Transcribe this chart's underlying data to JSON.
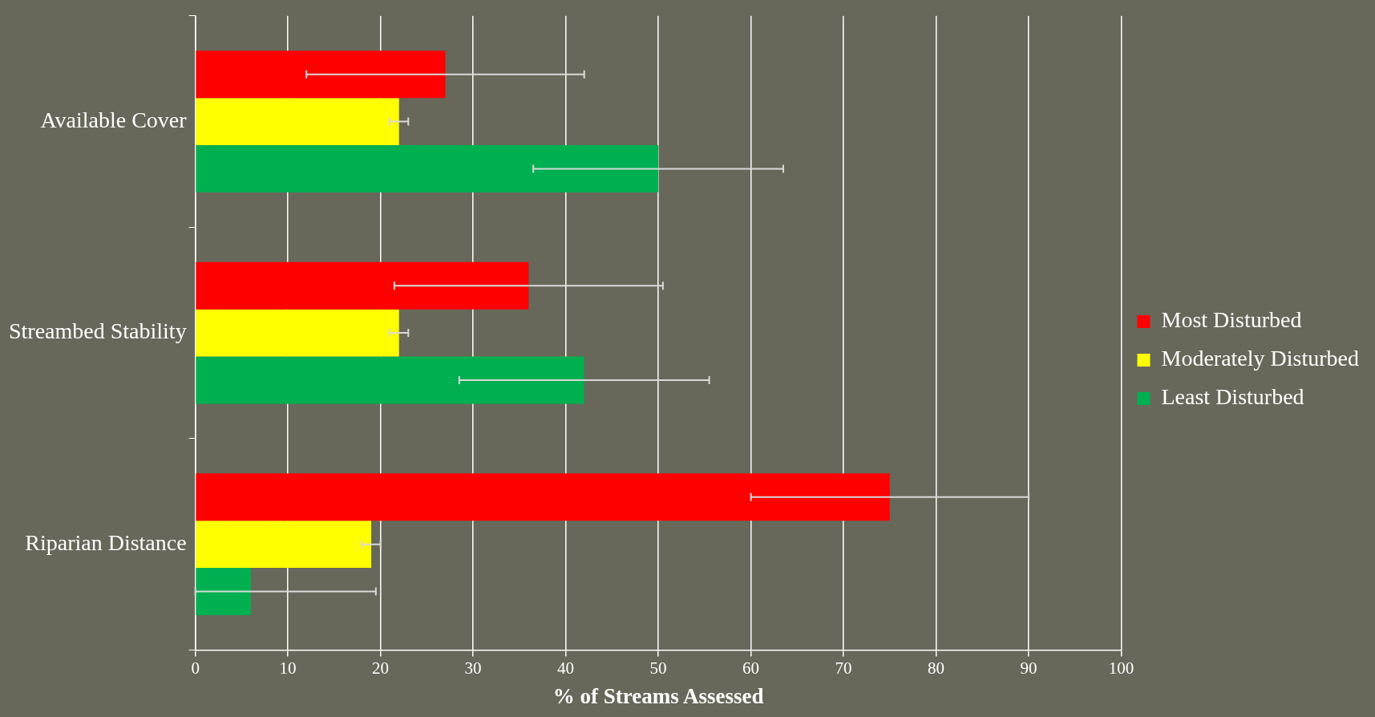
{
  "chart_data": {
    "type": "bar",
    "orientation": "horizontal",
    "xlabel": "% of Streams Assessed",
    "categories": [
      "Available Cover",
      "Streambed Stability",
      "Riparian Distance"
    ],
    "series": [
      {
        "name": "Most Disturbed",
        "color": "#ff0000",
        "values": [
          27,
          36,
          75
        ],
        "errors": [
          [
            12,
            42
          ],
          [
            21.5,
            50.5
          ],
          [
            60,
            90
          ]
        ]
      },
      {
        "name": "Moderately Disturbed",
        "color": "#ffff00",
        "values": [
          22,
          22,
          19
        ],
        "errors": [
          [
            21,
            23
          ],
          [
            21,
            23
          ],
          [
            18,
            20
          ]
        ]
      },
      {
        "name": "Least Disturbed",
        "color": "#00b050",
        "values": [
          50,
          42,
          6
        ],
        "errors": [
          [
            36.5,
            63.5
          ],
          [
            28.5,
            55.5
          ],
          [
            0,
            19.5
          ]
        ]
      }
    ],
    "xlim": [
      0,
      100
    ],
    "xticks": [
      0,
      10,
      20,
      30,
      40,
      50,
      60,
      70,
      80,
      90,
      100
    ],
    "grid": "x",
    "legend": "right"
  }
}
